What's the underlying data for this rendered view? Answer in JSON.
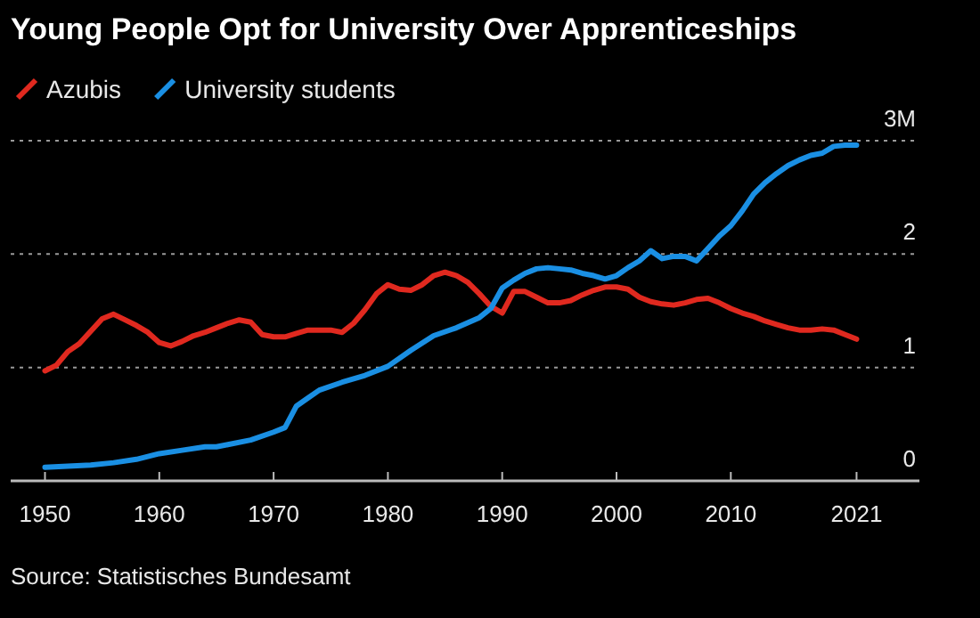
{
  "chart_data": {
    "type": "line",
    "title": "Young People Opt for University Over Apprenticeships",
    "annotations": [
      "Source: Statistisches Bundesamt"
    ],
    "legend": "top left",
    "grid": "y",
    "line_style": "solid",
    "xlim": [
      1947,
      2026.5
    ],
    "xticks": [
      1950,
      1960,
      1970,
      1980,
      1990,
      2000,
      2010,
      2021
    ],
    "ylim": [
      0,
      3
    ],
    "yticks": [
      0,
      1,
      2,
      {
        "value": 3,
        "label": "3M"
      }
    ],
    "series": [
      {
        "name": "Azubis",
        "color": "#e0291f",
        "x": [
          1950,
          1951,
          1952,
          1953,
          1954,
          1955,
          1956,
          1957,
          1958,
          1959,
          1960,
          1961,
          1962,
          1963,
          1964,
          1965,
          1966,
          1967,
          1968,
          1969,
          1970,
          1971,
          1972,
          1973,
          1974,
          1975,
          1976,
          1977,
          1978,
          1979,
          1980,
          1981,
          1982,
          1983,
          1984,
          1985,
          1986,
          1987,
          1988,
          1989,
          1990,
          1991,
          1992,
          1993,
          1994,
          1995,
          1996,
          1997,
          1998,
          1999,
          2000,
          2001,
          2002,
          2003,
          2004,
          2005,
          2006,
          2007,
          2008,
          2009,
          2010,
          2011,
          2012,
          2013,
          2014,
          2015,
          2016,
          2017,
          2018,
          2019,
          2020,
          2021
        ],
        "values": [
          0.97,
          1.02,
          1.14,
          1.21,
          1.32,
          1.43,
          1.47,
          1.42,
          1.37,
          1.31,
          1.22,
          1.19,
          1.23,
          1.28,
          1.31,
          1.35,
          1.39,
          1.42,
          1.4,
          1.29,
          1.27,
          1.27,
          1.3,
          1.33,
          1.33,
          1.33,
          1.31,
          1.39,
          1.51,
          1.65,
          1.73,
          1.69,
          1.68,
          1.73,
          1.81,
          1.84,
          1.81,
          1.75,
          1.65,
          1.54,
          1.48,
          1.67,
          1.67,
          1.62,
          1.57,
          1.57,
          1.59,
          1.64,
          1.68,
          1.71,
          1.71,
          1.69,
          1.62,
          1.58,
          1.56,
          1.55,
          1.57,
          1.6,
          1.61,
          1.57,
          1.52,
          1.48,
          1.45,
          1.41,
          1.38,
          1.35,
          1.33,
          1.33,
          1.34,
          1.33,
          1.29,
          1.25
        ]
      },
      {
        "name": "University students",
        "color": "#1a8fe3",
        "x": [
          1950,
          1952,
          1954,
          1956,
          1958,
          1960,
          1962,
          1964,
          1965,
          1966,
          1968,
          1970,
          1971,
          1972,
          1973,
          1974,
          1976,
          1978,
          1980,
          1982,
          1984,
          1986,
          1988,
          1989,
          1990,
          1991,
          1992,
          1993,
          1994,
          1995,
          1996,
          1997,
          1998,
          1999,
          2000,
          2001,
          2002,
          2003,
          2004,
          2005,
          2006,
          2007,
          2008,
          2009,
          2010,
          2011,
          2012,
          2013,
          2014,
          2015,
          2016,
          2017,
          2018,
          2019,
          2020,
          2021
        ],
        "values": [
          0.12,
          0.13,
          0.14,
          0.16,
          0.19,
          0.24,
          0.27,
          0.3,
          0.3,
          0.32,
          0.36,
          0.43,
          0.47,
          0.66,
          0.73,
          0.8,
          0.87,
          0.93,
          1.01,
          1.15,
          1.28,
          1.35,
          1.44,
          1.52,
          1.7,
          1.77,
          1.83,
          1.87,
          1.88,
          1.87,
          1.86,
          1.83,
          1.81,
          1.78,
          1.81,
          1.88,
          1.94,
          2.03,
          1.96,
          1.98,
          1.98,
          1.94,
          2.05,
          2.16,
          2.25,
          2.38,
          2.53,
          2.63,
          2.71,
          2.78,
          2.83,
          2.87,
          2.89,
          2.95,
          2.96,
          2.96
        ]
      }
    ]
  }
}
